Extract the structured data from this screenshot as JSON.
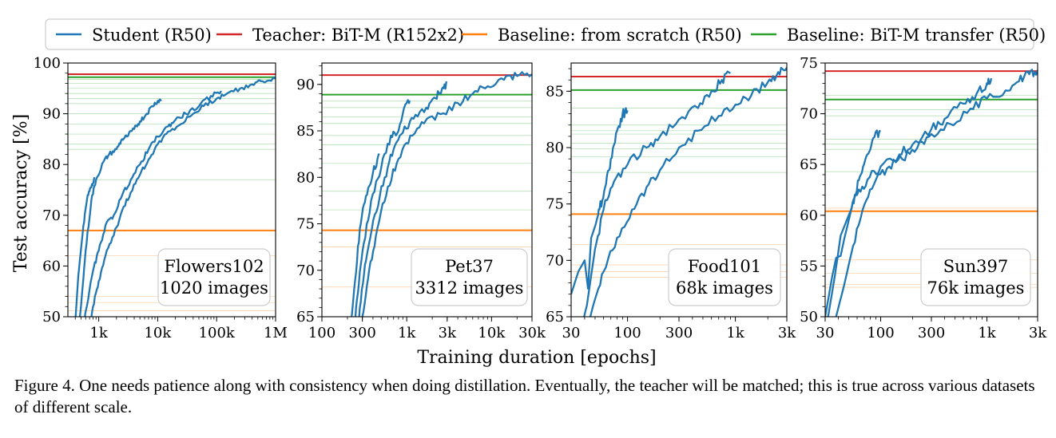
{
  "legend": {
    "placement": "top",
    "items": [
      {
        "label": "Student (R50)",
        "color": "#1f77b4"
      },
      {
        "label": "Teacher: BiT-M (R152x2)",
        "color": "#d62728"
      },
      {
        "label": "Baseline: from scratch (R50)",
        "color": "#ff7f0e"
      },
      {
        "label": "Baseline: BiT-M transfer (R50)",
        "color": "#2ca02c"
      }
    ]
  },
  "ylabel": "Test accuracy [%]",
  "xlabel": "Training duration [epochs]",
  "caption": "Figure 4. One needs patience along with consistency when doing distillation. Eventually, the teacher will be matched; this is true across various datasets of different scale.",
  "chart_data": [
    {
      "type": "line",
      "x_scale": "log",
      "annotation": [
        "Flowers102",
        "1020 images"
      ],
      "xlim": [
        300,
        1000000
      ],
      "ylim": [
        50,
        100
      ],
      "xticks": [
        1000,
        10000,
        100000,
        1000000
      ],
      "xtick_labels": [
        "1k",
        "10k",
        "100k",
        "1M"
      ],
      "yticks": [
        50,
        60,
        70,
        80,
        90,
        100
      ],
      "ytick_labels": [
        "50",
        "60",
        "70",
        "80",
        "90",
        "100"
      ],
      "teacher": 97.8,
      "transfer": 97.2,
      "scratch": 67.0,
      "transfer_faint": [
        96.8,
        96.0,
        95.0,
        94.0,
        93.0,
        92.0,
        90.0,
        88.0,
        86.0,
        84.0,
        83.0,
        77.0
      ],
      "scratch_faint": [
        62.0,
        54.0,
        52.8,
        51.2
      ],
      "series": [
        {
          "points": [
            [
              380,
              45
            ],
            [
              450,
              58
            ],
            [
              550,
              68
            ],
            [
              650,
              74
            ],
            [
              750,
              75.5
            ],
            [
              850,
              77.5
            ]
          ]
        },
        {
          "points": [
            [
              430,
              45
            ],
            [
              500,
              52
            ],
            [
              600,
              63
            ],
            [
              750,
              73
            ],
            [
              900,
              77
            ],
            [
              1200,
              80.5
            ],
            [
              1500,
              82
            ],
            [
              2000,
              83
            ],
            [
              2500,
              85
            ],
            [
              3000,
              85.5
            ],
            [
              4000,
              87
            ],
            [
              5000,
              88.5
            ],
            [
              6500,
              90
            ],
            [
              8000,
              91.5
            ],
            [
              10000,
              92.5
            ],
            [
              11500,
              92.8
            ]
          ]
        },
        {
          "points": [
            [
              520,
              45
            ],
            [
              600,
              51
            ],
            [
              800,
              59
            ],
            [
              1000,
              63
            ],
            [
              1300,
              68
            ],
            [
              1800,
              70
            ],
            [
              2500,
              74
            ],
            [
              3500,
              77
            ],
            [
              5000,
              80
            ],
            [
              7000,
              83
            ],
            [
              10000,
              85.5
            ],
            [
              15000,
              87.5
            ],
            [
              20000,
              88.8
            ],
            [
              30000,
              90
            ],
            [
              50000,
              91.5
            ],
            [
              80000,
              93.5
            ],
            [
              120000,
              94.5
            ]
          ]
        },
        {
          "points": [
            [
              650,
              45
            ],
            [
              800,
              52
            ],
            [
              1000,
              57
            ],
            [
              1300,
              62
            ],
            [
              1800,
              66
            ],
            [
              2500,
              71
            ],
            [
              3500,
              74.5
            ],
            [
              5000,
              78
            ],
            [
              7000,
              81
            ],
            [
              10000,
              84
            ],
            [
              15000,
              86.5
            ],
            [
              25000,
              88
            ],
            [
              40000,
              90
            ],
            [
              60000,
              91.5
            ],
            [
              100000,
              93
            ],
            [
              150000,
              94
            ],
            [
              250000,
              95
            ],
            [
              400000,
              95.8
            ],
            [
              600000,
              96.4
            ],
            [
              1000000,
              97
            ]
          ]
        }
      ]
    },
    {
      "type": "line",
      "x_scale": "log",
      "annotation": [
        "Pet37",
        "3312 images"
      ],
      "xlim": [
        100,
        30000
      ],
      "ylim": [
        65,
        92.3
      ],
      "xticks": [
        100,
        300,
        1000,
        3000,
        10000,
        30000
      ],
      "xtick_labels": [
        "100",
        "300",
        "1k",
        "3k",
        "10k",
        "30k"
      ],
      "yticks": [
        65,
        70,
        75,
        80,
        85,
        90
      ],
      "ytick_labels": [
        "65",
        "70",
        "75",
        "80",
        "85",
        "90"
      ],
      "teacher": 91.0,
      "transfer": 88.9,
      "scratch": 74.3,
      "transfer_faint": [
        88.2,
        87.5,
        86.5,
        85.8,
        84.5,
        83.5,
        81.5,
        78.5,
        76.5
      ],
      "scratch_faint": [
        72.5,
        68.2
      ],
      "series": [
        {
          "points": [
            [
              200,
              60
            ],
            [
              240,
              68
            ],
            [
              280,
              74.5
            ],
            [
              330,
              78
            ],
            [
              400,
              80.5
            ],
            [
              480,
              82.5
            ]
          ]
        },
        {
          "points": [
            [
              220,
              60
            ],
            [
              260,
              67
            ],
            [
              300,
              72
            ],
            [
              380,
              77.5
            ],
            [
              500,
              81
            ],
            [
              650,
              84.5
            ],
            [
              800,
              85
            ],
            [
              1000,
              88
            ],
            [
              1100,
              88.2
            ]
          ]
        },
        {
          "points": [
            [
              240,
              60
            ],
            [
              280,
              66
            ],
            [
              330,
              71
            ],
            [
              420,
              76
            ],
            [
              550,
              80
            ],
            [
              700,
              83
            ],
            [
              900,
              84.8
            ],
            [
              1200,
              86.3
            ],
            [
              1700,
              87.5
            ],
            [
              2200,
              88.5
            ],
            [
              2600,
              89.5
            ],
            [
              3000,
              90.2
            ]
          ]
        },
        {
          "points": [
            [
              270,
              60
            ],
            [
              300,
              65
            ],
            [
              360,
              70
            ],
            [
              450,
              74.5
            ],
            [
              600,
              79
            ],
            [
              800,
              82
            ],
            [
              1100,
              84.5
            ],
            [
              1600,
              85.8
            ],
            [
              2500,
              86.8
            ],
            [
              4000,
              88
            ],
            [
              6000,
              89
            ],
            [
              9000,
              89.8
            ],
            [
              14000,
              90.5
            ],
            [
              20000,
              90.9
            ],
            [
              30000,
              91.1
            ]
          ]
        }
      ]
    },
    {
      "type": "line",
      "x_scale": "log",
      "annotation": [
        "Food101",
        "68k images"
      ],
      "xlim": [
        30,
        3000
      ],
      "ylim": [
        65,
        87.5
      ],
      "xticks": [
        30,
        100,
        300,
        1000,
        3000
      ],
      "xtick_labels": [
        "30",
        "100",
        "300",
        "1k",
        "3k"
      ],
      "yticks": [
        65,
        70,
        75,
        80,
        85
      ],
      "ytick_labels": [
        "65",
        "70",
        "75",
        "80",
        "85"
      ],
      "teacher": 86.3,
      "transfer": 85.1,
      "scratch": 74.1,
      "transfer_faint": [
        83.5,
        82.0,
        81.5,
        81.2,
        80.4,
        79.9,
        79.2,
        77.8
      ],
      "scratch_faint": [
        71.4,
        69.6,
        69.0,
        68.5
      ],
      "series": [
        {
          "points": [
            [
              30,
              67
            ],
            [
              35,
              69
            ],
            [
              40,
              70
            ],
            [
              43,
              67.5
            ],
            [
              46,
              72
            ],
            [
              50,
              73
            ],
            [
              55,
              74.5
            ],
            [
              62,
              76.5
            ],
            [
              70,
              79
            ],
            [
              80,
              81.5
            ],
            [
              90,
              83
            ],
            [
              100,
              83.3
            ]
          ]
        },
        {
          "points": [
            [
              35,
              63
            ],
            [
              42,
              66
            ],
            [
              50,
              71
            ],
            [
              60,
              74.5
            ],
            [
              75,
              77
            ],
            [
              100,
              78.5
            ],
            [
              150,
              80
            ],
            [
              200,
              81
            ],
            [
              300,
              82.5
            ],
            [
              450,
              83.5
            ],
            [
              600,
              85
            ],
            [
              750,
              86
            ],
            [
              900,
              86.6
            ]
          ]
        },
        {
          "points": [
            [
              40,
              63
            ],
            [
              48,
              66
            ],
            [
              60,
              69
            ],
            [
              80,
              72
            ],
            [
              110,
              74.5
            ],
            [
              150,
              76.5
            ],
            [
              200,
              78
            ],
            [
              300,
              80
            ],
            [
              450,
              81.5
            ],
            [
              700,
              82.8
            ],
            [
              1000,
              83.8
            ],
            [
              1400,
              84.6
            ],
            [
              2000,
              85.8
            ],
            [
              2500,
              86.7
            ],
            [
              3000,
              87.1
            ]
          ]
        }
      ]
    },
    {
      "type": "line",
      "x_scale": "log",
      "annotation": [
        "Sun397",
        "76k images"
      ],
      "xlim": [
        30,
        3000
      ],
      "ylim": [
        50,
        75
      ],
      "xticks": [
        30,
        100,
        300,
        1000,
        3000
      ],
      "xtick_labels": [
        "30",
        "100",
        "300",
        "1k",
        "3k"
      ],
      "yticks": [
        50,
        55,
        60,
        65,
        70,
        75
      ],
      "ytick_labels": [
        "50",
        "55",
        "60",
        "65",
        "70",
        "75"
      ],
      "teacher": 74.2,
      "transfer": 71.4,
      "scratch": 60.4,
      "transfer_faint": [
        71.8,
        70.4,
        69.8,
        67.5,
        67.0,
        66.5,
        64.3
      ],
      "scratch_faint": [
        60.7,
        55.6,
        54.3,
        53.2,
        52.9
      ],
      "series": [
        {
          "points": [
            [
              30,
              50
            ],
            [
              35,
              54
            ],
            [
              38,
              55.8
            ],
            [
              42,
              56
            ],
            [
              45,
              57.5
            ],
            [
              50,
              59.5
            ],
            [
              57,
              62
            ],
            [
              65,
              64
            ],
            [
              75,
              66
            ],
            [
              85,
              67.6
            ],
            [
              100,
              68.3
            ]
          ]
        },
        {
          "points": [
            [
              32,
              50
            ],
            [
              37,
              54
            ],
            [
              42,
              58
            ],
            [
              50,
              60
            ],
            [
              60,
              62
            ],
            [
              75,
              63.5
            ],
            [
              100,
              64.8
            ],
            [
              150,
              66
            ],
            [
              200,
              67
            ],
            [
              300,
              68.5
            ],
            [
              400,
              69.5
            ],
            [
              600,
              71
            ],
            [
              800,
              72
            ],
            [
              1000,
              73
            ],
            [
              1100,
              73.5
            ]
          ]
        },
        {
          "points": [
            [
              38,
              50
            ],
            [
              45,
              53
            ],
            [
              55,
              57
            ],
            [
              70,
              61
            ],
            [
              90,
              63.5
            ],
            [
              120,
              64.8
            ],
            [
              160,
              65.5
            ],
            [
              220,
              66.6
            ],
            [
              300,
              68
            ],
            [
              450,
              69
            ],
            [
              700,
              70.5
            ],
            [
              1000,
              71.5
            ],
            [
              1500,
              72.3
            ],
            [
              2000,
              73.2
            ],
            [
              2500,
              73.9
            ],
            [
              3000,
              74.3
            ]
          ]
        }
      ]
    }
  ]
}
